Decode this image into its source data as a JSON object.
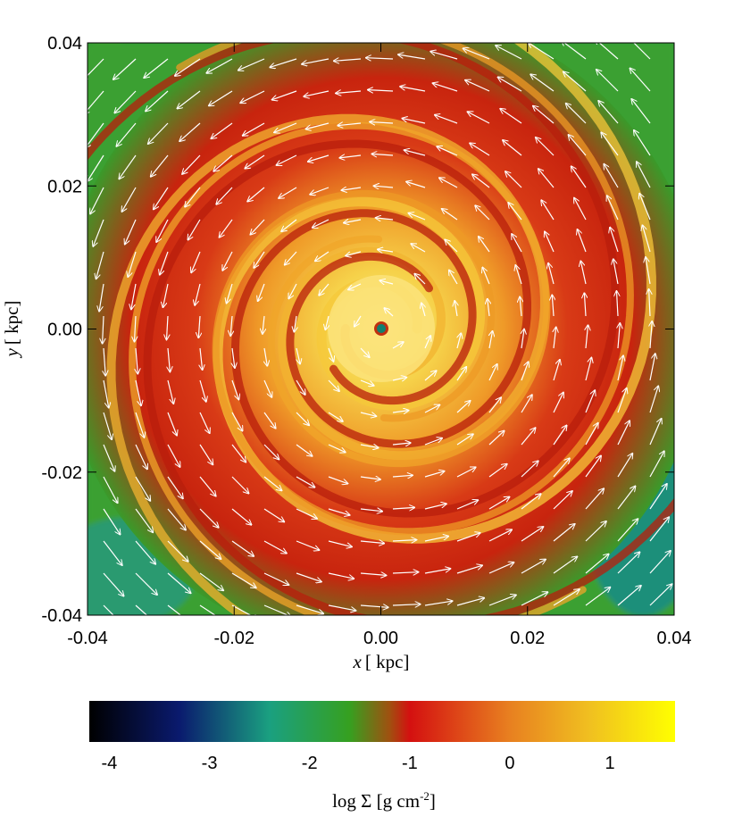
{
  "chart_data": {
    "type": "heatmap",
    "title": "",
    "xlabel_var": "x",
    "xlabel_unit": "[ kpc]",
    "ylabel_var": "y",
    "ylabel_unit": "[ kpc]",
    "xlim": [
      -0.04,
      0.04
    ],
    "ylim": [
      -0.04,
      0.04
    ],
    "x_ticks": [
      "-0.04",
      "-0.02",
      "0.00",
      "0.02",
      "0.04"
    ],
    "y_ticks": [
      "0.04",
      "0.02",
      "0.00",
      "-0.02",
      "-0.04"
    ],
    "x_tick_values": [
      -0.04,
      -0.02,
      0.0,
      0.02,
      0.04
    ],
    "y_tick_values": [
      0.04,
      0.02,
      0.0,
      -0.02,
      -0.04
    ],
    "field": "gas surface density map with spiral arms and velocity vectors (counter-clockwise rotation about origin)",
    "colorbar": {
      "label_prefix": "log Σ [g cm",
      "label_exp": "-2",
      "label_suffix": "]",
      "range": [
        -4.2,
        1.65
      ],
      "ticks": [
        "-4",
        "-3",
        "-2",
        "-1",
        "0",
        "1"
      ],
      "tick_values": [
        -4,
        -3,
        -2,
        -1,
        0,
        1
      ],
      "stops": [
        {
          "v": -4.2,
          "color": "#000000"
        },
        {
          "v": -3.3,
          "color": "#0a1a6e"
        },
        {
          "v": -2.4,
          "color": "#1aa080"
        },
        {
          "v": -1.6,
          "color": "#36a020"
        },
        {
          "v": -1.2,
          "color": "#a05010"
        },
        {
          "v": -1.0,
          "color": "#d41010"
        },
        {
          "v": 0.0,
          "color": "#e88020"
        },
        {
          "v": 0.8,
          "color": "#f0c020"
        },
        {
          "v": 1.65,
          "color": "#ffff00"
        }
      ]
    }
  }
}
